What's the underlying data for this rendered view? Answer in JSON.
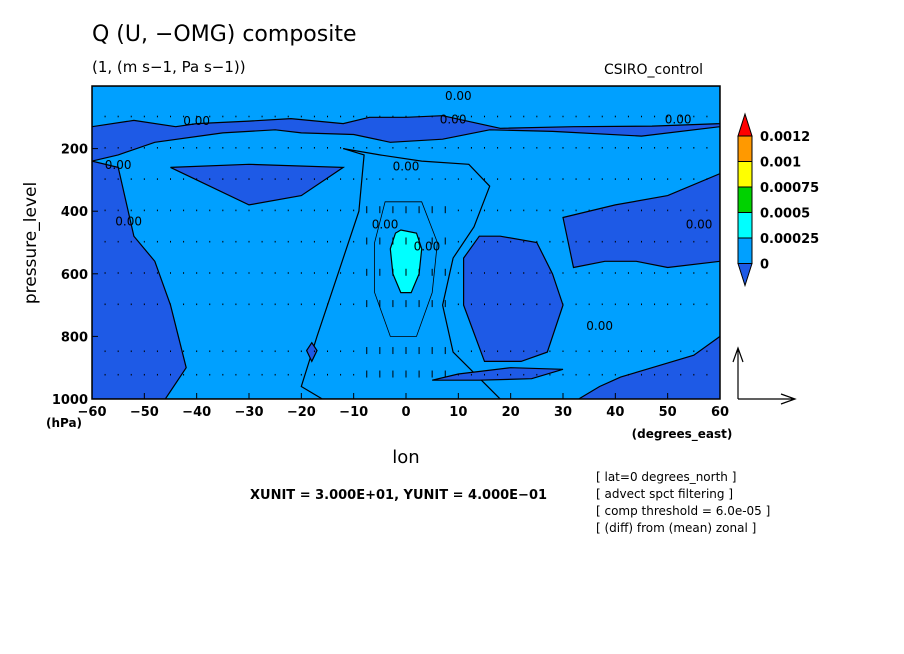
{
  "title": "Q (U, −OMG) composite",
  "subtitle": "(1, (m s−1, Pa s−1))",
  "run_label": "CSIRO_control",
  "units_text": "XUNIT = 3.000E+01, YUNIT = 4.000E−01",
  "notes": [
    "[ lat=0 degrees_north ]",
    "[ advect spct filtering ]",
    "[ comp threshold = 6.0e-05 ]",
    "[ (diff) from (mean) zonal ]"
  ],
  "chart_data": {
    "type": "contour",
    "xlabel": "lon",
    "xunit": "(degrees_east)",
    "ylabel": "pressure_level",
    "yunit": "(hPa)",
    "xlim": [
      -60,
      60
    ],
    "ylim": [
      1000,
      0
    ],
    "xticks": [
      "−60",
      "−50",
      "−40",
      "−30",
      "−20",
      "−10",
      "0",
      "10",
      "20",
      "30",
      "40",
      "50",
      "60"
    ],
    "yticks": [
      "1000",
      "800",
      "600",
      "400",
      "200"
    ],
    "contour_label": "0.00",
    "colorbar": {
      "levels": [
        "0",
        "0.00025",
        "0.0005",
        "0.00075",
        "0.001",
        "0.0012"
      ],
      "colors": [
        "#1e5ae6",
        "#00a0ff",
        "#00ffff",
        "#00d200",
        "#ffff00",
        "#ff9900",
        "#ff0000"
      ]
    },
    "regions": [
      {
        "level": "0 to 0.00025",
        "color": "#00a0ff",
        "polygons": [
          [
            [
              -60,
              130
            ],
            [
              -52,
              110
            ],
            [
              -44,
              130
            ],
            [
              -40,
              120
            ],
            [
              -30,
              112
            ],
            [
              -22,
              104
            ],
            [
              -12,
              120
            ],
            [
              -7,
              100
            ],
            [
              0,
              100
            ],
            [
              7,
              95
            ],
            [
              18,
              135
            ],
            [
              32,
              130
            ],
            [
              47,
              128
            ],
            [
              60,
              120
            ],
            [
              60,
              0
            ],
            [
              -60,
              0
            ]
          ],
          [
            [
              -60,
              240
            ],
            [
              -55,
              220
            ],
            [
              -48,
              180
            ],
            [
              -35,
              150
            ],
            [
              -25,
              140
            ],
            [
              -20,
              150
            ],
            [
              -10,
              155
            ],
            [
              -3,
              180
            ],
            [
              7,
              170
            ],
            [
              16,
              140
            ],
            [
              28,
              145
            ],
            [
              45,
              160
            ],
            [
              60,
              130
            ],
            [
              60,
              800
            ],
            [
              55,
              860
            ],
            [
              47,
              900
            ],
            [
              41,
              930
            ],
            [
              37,
              960
            ],
            [
              33,
              1000
            ],
            [
              -60,
              1000
            ]
          ]
        ]
      },
      {
        "level": "0 to 0.00025",
        "color": "#00a0ff",
        "polygons": [
          [
            [
              -12,
              200
            ],
            [
              -8,
              220
            ],
            [
              -9,
              400
            ],
            [
              -13,
              600
            ],
            [
              -17,
              800
            ],
            [
              -20,
              960
            ],
            [
              -16,
              1000
            ],
            [
              18,
              1000
            ],
            [
              15,
              950
            ],
            [
              9,
              850
            ],
            [
              7,
              700
            ],
            [
              9,
              550
            ],
            [
              13,
              450
            ],
            [
              16,
              320
            ],
            [
              12,
              250
            ],
            [
              3,
              240
            ],
            [
              -5,
              220
            ]
          ]
        ]
      },
      {
        "level": "0.00025 to 0.0005",
        "color": "#00ffff",
        "polygons": [
          [
            [
              -1,
              460
            ],
            [
              2,
              470
            ],
            [
              3,
              520
            ],
            [
              2.5,
              600
            ],
            [
              1,
              660
            ],
            [
              -1,
              660
            ],
            [
              -2.5,
              600
            ],
            [
              -3,
              520
            ],
            [
              -2,
              470
            ]
          ]
        ]
      }
    ],
    "blue_patches": [
      [
        [
          -60,
          240
        ],
        [
          -55,
          260
        ],
        [
          -52,
          480
        ],
        [
          -48,
          560
        ],
        [
          -45,
          700
        ],
        [
          -42,
          900
        ],
        [
          -46,
          1000
        ],
        [
          -60,
          1000
        ]
      ],
      [
        [
          -18,
          820
        ],
        [
          -17,
          845
        ],
        [
          -18,
          880
        ],
        [
          -19,
          845
        ]
      ],
      [
        [
          10,
          920
        ],
        [
          20,
          900
        ],
        [
          30,
          905
        ],
        [
          24,
          935
        ],
        [
          14,
          940
        ],
        [
          5,
          940
        ]
      ],
      [
        [
          32,
          580
        ],
        [
          38,
          560
        ],
        [
          44,
          560
        ],
        [
          50,
          580
        ],
        [
          60,
          560
        ],
        [
          60,
          280
        ],
        [
          50,
          350
        ],
        [
          40,
          380
        ],
        [
          30,
          420
        ]
      ],
      [
        [
          -45,
          260
        ],
        [
          -40,
          300
        ],
        [
          -30,
          380
        ],
        [
          -20,
          350
        ],
        [
          -12,
          260
        ],
        [
          -30,
          250
        ]
      ],
      [
        [
          18,
          480
        ],
        [
          25,
          500
        ],
        [
          28,
          600
        ],
        [
          30,
          700
        ],
        [
          27,
          850
        ],
        [
          22,
          880
        ],
        [
          15,
          880
        ],
        [
          11,
          700
        ],
        [
          11,
          550
        ],
        [
          14,
          480
        ]
      ]
    ],
    "contour_labels": [
      {
        "lon": -40,
        "p": 125,
        "text": "0.00"
      },
      {
        "lon": -55,
        "p": 265,
        "text": "0.00"
      },
      {
        "lon": 0,
        "p": 270,
        "text": "0.00"
      },
      {
        "lon": 10,
        "p": 45,
        "text": "0.00"
      },
      {
        "lon": 9,
        "p": 120,
        "text": "0.00"
      },
      {
        "lon": 52,
        "p": 120,
        "text": "0.00"
      },
      {
        "lon": -53,
        "p": 445,
        "text": "0.00"
      },
      {
        "lon": -4,
        "p": 455,
        "text": "0.00"
      },
      {
        "lon": 4,
        "p": 525,
        "text": "0.00"
      },
      {
        "lon": 56,
        "p": 455,
        "text": "0.00"
      },
      {
        "lon": 37,
        "p": 780,
        "text": "0.00"
      }
    ],
    "vector_rows": [
      100,
      200,
      300,
      400,
      500,
      600,
      700,
      850,
      925
    ],
    "vector_cols_step": 2.5
  }
}
